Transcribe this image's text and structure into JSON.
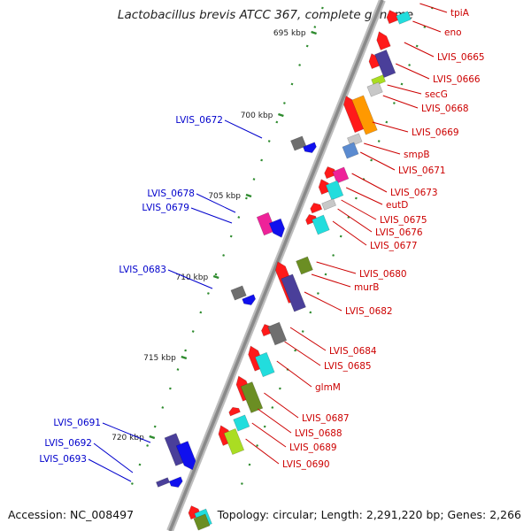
{
  "title": "Lactobacillus brevis ATCC 367, complete genome",
  "footer": {
    "accession": "Accession: NC_008497",
    "topology": "Topology: circular; Length: 2,291,220 bp; Genes: 2,266"
  },
  "colors": {
    "right_label": "#cc0000",
    "left_label": "#0000cc",
    "tick": "#2e8b2e",
    "backbone": "#8a8a8a",
    "gene_red": "#ff1a1a",
    "gene_blue": "#1010ee",
    "gene_gray": "#6f6f6f",
    "gene_cyan": "#22dddd",
    "gene_olive": "#6b8e23",
    "gene_slate": "#4a3f9a",
    "gene_orange": "#ff9900",
    "gene_pink": "#ee2299",
    "gene_light": "#c8c8c8",
    "gene_lime": "#aadd22",
    "gene_steel": "#5b8bd0"
  },
  "scale_labels": [
    {
      "text": "695 kbp"
    },
    {
      "text": "700 kbp"
    },
    {
      "text": "705 kbp"
    },
    {
      "text": "710 kbp"
    },
    {
      "text": "715 kbp"
    },
    {
      "text": "720 kbp"
    }
  ],
  "right_genes": [
    "tpiA",
    "eno",
    "LVIS_0665",
    "LVIS_0666",
    "secG",
    "LVIS_0668",
    "LVIS_0669",
    "smpB",
    "LVIS_0671",
    "LVIS_0673",
    "eutD",
    "LVIS_0675",
    "LVIS_0676",
    "LVIS_0677",
    "LVIS_0680",
    "murB",
    "LVIS_0682",
    "LVIS_0684",
    "LVIS_0685",
    "glmM",
    "LVIS_0687",
    "LVIS_0688",
    "LVIS_0689",
    "LVIS_0690"
  ],
  "left_genes": [
    "LVIS_0672",
    "LVIS_0678",
    "LVIS_0679",
    "LVIS_0683",
    "LVIS_0691",
    "LVIS_0692",
    "LVIS_0693"
  ]
}
